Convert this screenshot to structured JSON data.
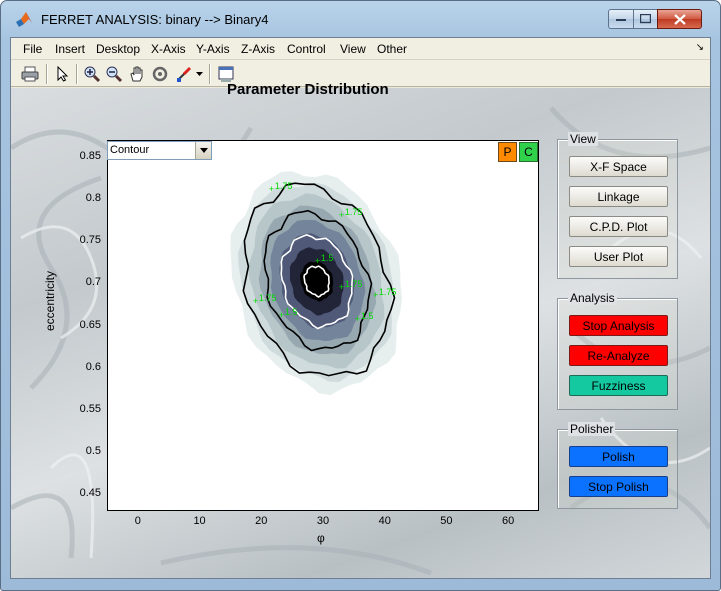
{
  "window": {
    "title": "FERRET ANALYSIS: binary --> Binary4",
    "icon": "matlab-icon"
  },
  "menu": {
    "items": [
      "File",
      "Insert",
      "Desktop",
      "X-Axis",
      "Y-Axis",
      "Z-Axis",
      "Control",
      "View",
      "Other"
    ],
    "overflow_arrow": "↘"
  },
  "toolbar": {
    "icons": [
      "print-icon",
      "pointer-icon",
      "zoom-in-icon",
      "zoom-out-icon",
      "pan-hand-icon",
      "rotate-icon",
      "data-cursor-icon",
      "dropdown-arrow-icon",
      "dock-icon"
    ]
  },
  "plot": {
    "title": "Parameter Distribution",
    "type_select": "Contour",
    "p_button": "P",
    "c_button": "C",
    "xlabel": "φ",
    "ylabel": "eccentricity",
    "xticks": [
      "0",
      "10",
      "20",
      "30",
      "40",
      "50",
      "60"
    ],
    "yticks": [
      "0.85",
      "0.8",
      "0.75",
      "0.7",
      "0.65",
      "0.6",
      "0.55",
      "0.5",
      "0.45"
    ],
    "contour_labels": [
      "1.75",
      "1.75",
      "1.75",
      "1.75",
      "1.75",
      "1.5",
      "1.5",
      "1.5"
    ]
  },
  "chart_data": {
    "type": "heatmap",
    "title": "Parameter Distribution",
    "xlabel": "φ",
    "ylabel": "eccentricity",
    "xlim": [
      -5,
      65
    ],
    "ylim": [
      0.43,
      0.87
    ],
    "peak": {
      "x": 29,
      "y": 0.703
    },
    "contour_levels": [
      1.5,
      1.75
    ],
    "colormap": [
      "#e6eeee",
      "#cfdbdc",
      "#b6c6c9",
      "#97a8b0",
      "#74849a",
      "#505a78",
      "#222438",
      "#000000"
    ]
  },
  "panels": {
    "view": {
      "label": "View",
      "buttons": [
        "X-F Space",
        "Linkage",
        "C.P.D. Plot",
        "User Plot"
      ]
    },
    "analysis": {
      "label": "Analysis",
      "buttons": [
        "Stop Analysis",
        "Re-Analyze",
        "Fuzziness"
      ]
    },
    "polisher": {
      "label": "Polisher",
      "buttons": [
        "Polish",
        "Stop Polish"
      ]
    }
  },
  "colors": {
    "stop_analysis": "#ff0000",
    "fuzziness": "#14c8a0",
    "polish": "#0a72ff",
    "p_button": "#ff8a00",
    "c_button": "#2fd24a",
    "contour_label": "#00dd00"
  }
}
